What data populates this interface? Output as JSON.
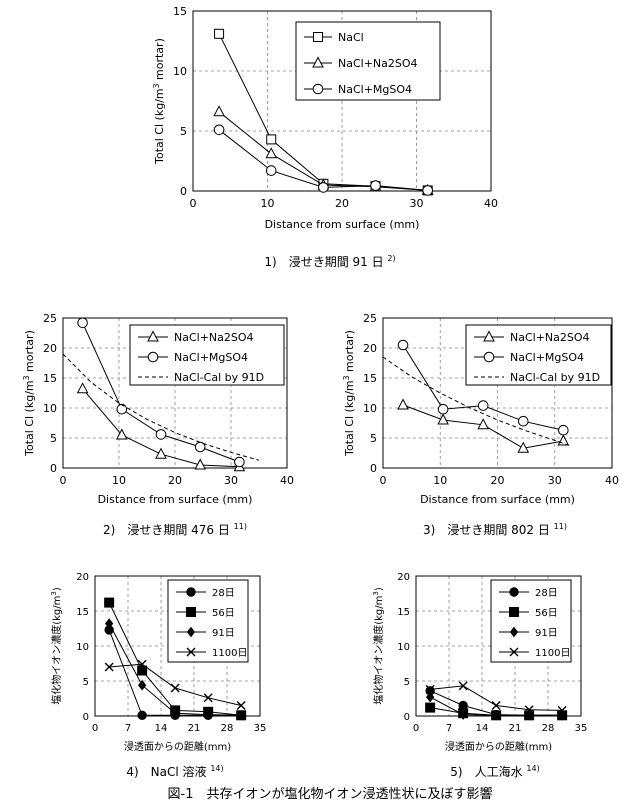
{
  "figure_caption": "図-1　共存イオンが塩化物イオン浸透性状に及ぼす影響",
  "chart_data": [
    {
      "type": "line",
      "caption": "1)　浸せき期間 91 日",
      "caption_ref": "2)",
      "xlabel": "Distance from surface (mm)",
      "ylabel": "Total Cl (kg/m3 mortar)",
      "xlim": [
        0,
        40
      ],
      "ylim": [
        0,
        15
      ],
      "xticks": [
        0,
        10,
        20,
        30,
        40
      ],
      "yticks": [
        0,
        5,
        10,
        15
      ],
      "grid": true,
      "legend_position": "top-right",
      "series": [
        {
          "name": "NaCl",
          "marker": "square",
          "line": "solid",
          "x": [
            3.5,
            10.5,
            17.5,
            24.5,
            31.5
          ],
          "y": [
            13.1,
            4.3,
            0.6,
            0.4,
            0.05
          ]
        },
        {
          "name": "NaCl+Na2SO4",
          "marker": "triangle",
          "line": "solid",
          "x": [
            3.5,
            10.5,
            17.5,
            24.5,
            31.5
          ],
          "y": [
            6.6,
            3.1,
            0.5,
            0.35,
            0.05
          ]
        },
        {
          "name": "NaCl+MgSO4",
          "marker": "circle",
          "line": "solid",
          "x": [
            3.5,
            10.5,
            17.5,
            24.5,
            31.5
          ],
          "y": [
            5.1,
            1.7,
            0.3,
            0.45,
            0.05
          ]
        }
      ]
    },
    {
      "type": "line",
      "caption": "2)　浸せき期間 476 日",
      "caption_ref": "11)",
      "xlabel": "Distance from surface (mm)",
      "ylabel": "Total Cl (kg/m3 mortar)",
      "xlim": [
        0,
        40
      ],
      "ylim": [
        0,
        25
      ],
      "xticks": [
        0,
        10,
        20,
        30,
        40
      ],
      "yticks": [
        0,
        5,
        10,
        15,
        20,
        25
      ],
      "grid": true,
      "legend_position": "top-right",
      "series": [
        {
          "name": "NaCl+Na2SO4",
          "marker": "triangle",
          "line": "solid",
          "x": [
            3.5,
            10.5,
            17.5,
            24.5,
            31.5
          ],
          "y": [
            13.2,
            5.5,
            2.3,
            0.5,
            0.2
          ]
        },
        {
          "name": "NaCl+MgSO4",
          "marker": "circle",
          "line": "solid",
          "x": [
            3.5,
            10.5,
            17.5,
            24.5,
            31.5
          ],
          "y": [
            24.2,
            9.8,
            5.6,
            3.5,
            1.0
          ]
        },
        {
          "name": "NaCl-Cal by 91D",
          "marker": "none",
          "line": "dashed",
          "x": [
            0,
            5,
            10,
            15,
            20,
            25,
            30,
            35
          ],
          "y": [
            19,
            14.3,
            10.8,
            8.1,
            5.9,
            4.1,
            2.6,
            1.3
          ]
        }
      ]
    },
    {
      "type": "line",
      "caption": "3)　浸せき期間 802 日",
      "caption_ref": "11)",
      "xlabel": "Distance from surface (mm)",
      "ylabel": "Total Cl (kg/m3 mortar)",
      "xlim": [
        0,
        40
      ],
      "ylim": [
        0,
        25
      ],
      "xticks": [
        0,
        10,
        20,
        30,
        40
      ],
      "yticks": [
        0,
        5,
        10,
        15,
        20,
        25
      ],
      "grid": true,
      "legend_position": "top-right",
      "series": [
        {
          "name": "NaCl+Na2SO4",
          "marker": "triangle",
          "line": "solid",
          "x": [
            3.5,
            10.5,
            17.5,
            24.5,
            31.5
          ],
          "y": [
            10.5,
            8.0,
            7.2,
            3.3,
            4.5
          ]
        },
        {
          "name": "NaCl+MgSO4",
          "marker": "circle",
          "line": "solid",
          "x": [
            3.5,
            10.5,
            17.5,
            24.5,
            31.5
          ],
          "y": [
            20.5,
            9.8,
            10.4,
            7.8,
            6.3
          ]
        },
        {
          "name": "NaCl-Cal by 91D",
          "marker": "none",
          "line": "dashed",
          "x": [
            0,
            5,
            10,
            15,
            20,
            25,
            30,
            33
          ],
          "y": [
            18.5,
            15.2,
            12.5,
            10.1,
            8.0,
            6.2,
            4.6,
            3.6
          ]
        }
      ]
    },
    {
      "type": "line",
      "caption": "4)　NaCl 溶液",
      "caption_ref": "14)",
      "xlabel": "浸透面からの距離(mm)",
      "ylabel": "塩化物イオン濃度(kg/m3)",
      "xlim": [
        0,
        35
      ],
      "ylim": [
        0,
        20
      ],
      "xticks": [
        0,
        7,
        14,
        21,
        28,
        35
      ],
      "yticks": [
        0,
        5,
        10,
        15,
        20
      ],
      "grid": true,
      "legend_position": "top-right",
      "series": [
        {
          "name": "28日",
          "marker": "circle-filled",
          "line": "solid",
          "x": [
            3,
            10,
            17,
            24,
            31
          ],
          "y": [
            12.3,
            0.1,
            0.1,
            0.1,
            0.1
          ]
        },
        {
          "name": "56日",
          "marker": "square-filled",
          "line": "solid",
          "x": [
            3,
            10,
            17,
            24,
            31
          ],
          "y": [
            16.2,
            6.5,
            0.8,
            0.6,
            0.1
          ]
        },
        {
          "name": "91日",
          "marker": "diamond-filled",
          "line": "solid",
          "x": [
            3,
            10,
            17,
            24,
            31
          ],
          "y": [
            13.2,
            4.4,
            0.4,
            0.2,
            0.1
          ]
        },
        {
          "name": "1100日",
          "marker": "x",
          "line": "solid",
          "x": [
            3,
            10,
            17,
            24,
            31
          ],
          "y": [
            7.0,
            7.4,
            4.0,
            2.6,
            1.5
          ]
        }
      ]
    },
    {
      "type": "line",
      "caption": "5)　人工海水",
      "caption_ref": "14)",
      "xlabel": "浸透面からの距離(mm)",
      "ylabel": "塩化物イオン濃度(kg/m3)",
      "xlim": [
        0,
        35
      ],
      "ylim": [
        0,
        20
      ],
      "xticks": [
        0,
        7,
        14,
        21,
        28,
        35
      ],
      "yticks": [
        0,
        5,
        10,
        15,
        20
      ],
      "grid": true,
      "legend_position": "top-right",
      "series": [
        {
          "name": "28日",
          "marker": "circle-filled",
          "line": "solid",
          "x": [
            3,
            10,
            17,
            24,
            31
          ],
          "y": [
            3.6,
            1.5,
            0.2,
            0.1,
            0.1
          ]
        },
        {
          "name": "56日",
          "marker": "square-filled",
          "line": "solid",
          "x": [
            3,
            10,
            17,
            24,
            31
          ],
          "y": [
            1.2,
            0.4,
            0.1,
            0.1,
            0.1
          ]
        },
        {
          "name": "91日",
          "marker": "diamond-filled",
          "line": "solid",
          "x": [
            3,
            10,
            17,
            24,
            31
          ],
          "y": [
            2.7,
            0.2,
            0.1,
            0.1,
            0.1
          ]
        },
        {
          "name": "1100日",
          "marker": "x",
          "line": "solid",
          "x": [
            3,
            10,
            17,
            24,
            31
          ],
          "y": [
            3.8,
            4.3,
            1.5,
            0.9,
            0.8
          ]
        }
      ]
    }
  ]
}
